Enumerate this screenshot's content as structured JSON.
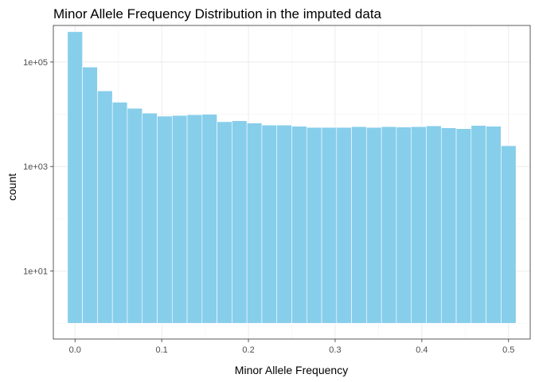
{
  "chart_data": {
    "type": "bar",
    "title": "Minor Allele Frequency Distribution in the imputed data",
    "xlabel": "Minor Allele Frequency",
    "ylabel": "count",
    "y_scale": "log10",
    "bin_width": 0.01724,
    "xlim": [
      -0.025,
      0.525
    ],
    "ylim": [
      0.5,
      500000
    ],
    "x_ticks": [
      0.0,
      0.1,
      0.2,
      0.3,
      0.4,
      0.5
    ],
    "x_tick_labels": [
      "0.0",
      "0.1",
      "0.2",
      "0.3",
      "0.4",
      "0.5"
    ],
    "y_ticks": [
      10,
      1000,
      100000
    ],
    "y_tick_labels": [
      "1e+01",
      "1e+03",
      "1e+05"
    ],
    "grid": true,
    "legend": "none",
    "bar_color": "#87CEEB",
    "bin_centers": [
      0.0,
      0.01724,
      0.03448,
      0.05172,
      0.06897,
      0.08621,
      0.10345,
      0.12069,
      0.13793,
      0.15517,
      0.17241,
      0.18966,
      0.2069,
      0.22414,
      0.24138,
      0.25862,
      0.27586,
      0.2931,
      0.31034,
      0.32759,
      0.34483,
      0.36207,
      0.37931,
      0.39655,
      0.41379,
      0.43103,
      0.44828,
      0.46552,
      0.48276,
      0.5
    ],
    "values": [
      380000,
      80000,
      28000,
      17000,
      13000,
      10500,
      9200,
      9500,
      9800,
      10000,
      7200,
      7500,
      6800,
      6200,
      6200,
      5900,
      5600,
      5600,
      5600,
      5800,
      5600,
      5800,
      5700,
      5800,
      6000,
      5500,
      5300,
      6100,
      5900,
      2500
    ]
  }
}
